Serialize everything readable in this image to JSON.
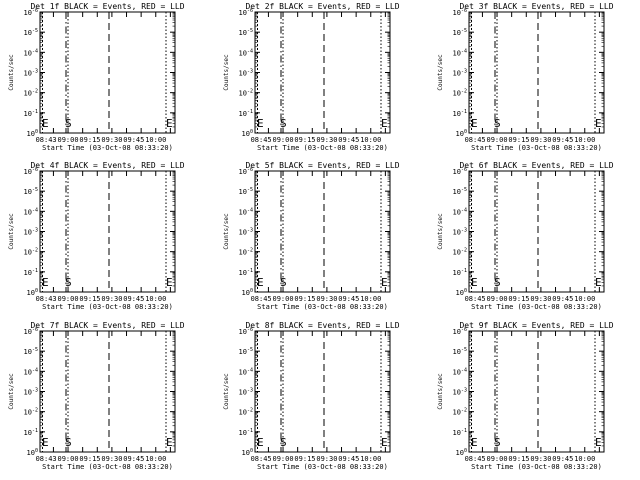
{
  "figure": {
    "background": "#ffffff",
    "foreground": "#000000"
  },
  "chart_data": [
    {
      "type": "line",
      "title": "Det 1f BLACK = Events, RED = LLD",
      "xlabel": "Start Time (03-Oct-08 08:33:20)",
      "ylabel": "Counts/sec",
      "xticks": [
        "08:43",
        "09:00",
        "09:15",
        "09:30",
        "09:45",
        "10:00"
      ],
      "yscale": "log",
      "yticks": [
        "10^0",
        "10^-1",
        "10^-2",
        "10^-3",
        "10^-4",
        "10^-5",
        "10^-6"
      ],
      "markers": [
        "E",
        "S",
        "E"
      ],
      "series": []
    },
    {
      "type": "line",
      "title": "Det 2f BLACK = Events, RED = LLD",
      "xlabel": "Start Time (03-Oct-08 08:33:20)",
      "ylabel": "Counts/sec",
      "xticks": [
        "08:45",
        "09:00",
        "09:15",
        "09:30",
        "09:45",
        "10:00"
      ],
      "yscale": "log",
      "yticks": [
        "10^0",
        "10^-1",
        "10^-2",
        "10^-3",
        "10^-4",
        "10^-5",
        "10^-6"
      ],
      "markers": [
        "E",
        "S",
        "E"
      ],
      "series": []
    },
    {
      "type": "line",
      "title": "Det 3f BLACK = Events, RED = LLD",
      "xlabel": "Start Time (03-Oct-08 08:33:20)",
      "ylabel": "Counts/sec",
      "xticks": [
        "08:45",
        "09:00",
        "09:15",
        "09:30",
        "09:45",
        "10:00"
      ],
      "yscale": "log",
      "yticks": [
        "10^0",
        "10^-1",
        "10^-2",
        "10^-3",
        "10^-4",
        "10^-5",
        "10^-6"
      ],
      "markers": [
        "E",
        "S",
        "E"
      ],
      "series": []
    },
    {
      "type": "line",
      "title": "Det 4f BLACK = Events, RED = LLD",
      "xlabel": "Start Time (03-Oct-08 08:33:20)",
      "ylabel": "Counts/sec",
      "xticks": [
        "08:43",
        "09:00",
        "09:15",
        "09:30",
        "09:45",
        "10:00"
      ],
      "yscale": "log",
      "yticks": [
        "10^0",
        "10^-1",
        "10^-2",
        "10^-3",
        "10^-4",
        "10^-5",
        "10^-6"
      ],
      "markers": [
        "E",
        "S",
        "E"
      ],
      "series": []
    },
    {
      "type": "line",
      "title": "Det 5f BLACK = Events, RED = LLD",
      "xlabel": "Start Time (03-Oct-08 08:33:20)",
      "ylabel": "Counts/sec",
      "xticks": [
        "08:45",
        "09:00",
        "09:15",
        "09:30",
        "09:45",
        "10:00"
      ],
      "yscale": "log",
      "yticks": [
        "10^0",
        "10^-1",
        "10^-2",
        "10^-3",
        "10^-4",
        "10^-5",
        "10^-6"
      ],
      "markers": [
        "E",
        "S",
        "E"
      ],
      "series": []
    },
    {
      "type": "line",
      "title": "Det 6f BLACK = Events, RED = LLD",
      "xlabel": "Start Time (03-Oct-08 08:33:20)",
      "ylabel": "Counts/sec",
      "xticks": [
        "08:45",
        "09:00",
        "09:15",
        "09:30",
        "09:45",
        "10:00"
      ],
      "yscale": "log",
      "yticks": [
        "10^0",
        "10^-1",
        "10^-2",
        "10^-3",
        "10^-4",
        "10^-5",
        "10^-6"
      ],
      "markers": [
        "E",
        "S",
        "E"
      ],
      "series": []
    },
    {
      "type": "line",
      "title": "Det 7f BLACK = Events, RED = LLD",
      "xlabel": "Start Time (03-Oct-08 08:33:20)",
      "ylabel": "Counts/sec",
      "xticks": [
        "08:43",
        "09:00",
        "09:15",
        "09:30",
        "09:45",
        "10:00"
      ],
      "yscale": "log",
      "yticks": [
        "10^0",
        "10^-1",
        "10^-2",
        "10^-3",
        "10^-4",
        "10^-5",
        "10^-6"
      ],
      "markers": [
        "E",
        "S",
        "E"
      ],
      "series": []
    },
    {
      "type": "line",
      "title": "Det 8f BLACK = Events, RED = LLD",
      "xlabel": "Start Time (03-Oct-08 08:33:20)",
      "ylabel": "Counts/sec",
      "xticks": [
        "08:45",
        "09:00",
        "09:15",
        "09:30",
        "09:45",
        "10:00"
      ],
      "yscale": "log",
      "yticks": [
        "10^0",
        "10^-1",
        "10^-2",
        "10^-3",
        "10^-4",
        "10^-5",
        "10^-6"
      ],
      "markers": [
        "E",
        "S",
        "E"
      ],
      "series": []
    },
    {
      "type": "line",
      "title": "Det 9f BLACK = Events, RED = LLD",
      "xlabel": "Start Time (03-Oct-08 08:33:20)",
      "ylabel": "Counts/sec",
      "xticks": [
        "08:45",
        "09:00",
        "09:15",
        "09:30",
        "09:45",
        "10:00"
      ],
      "yscale": "log",
      "yticks": [
        "10^0",
        "10^-1",
        "10^-2",
        "10^-3",
        "10^-4",
        "10^-5",
        "10^-6"
      ],
      "markers": [
        "E",
        "S",
        "E"
      ],
      "series": []
    }
  ]
}
